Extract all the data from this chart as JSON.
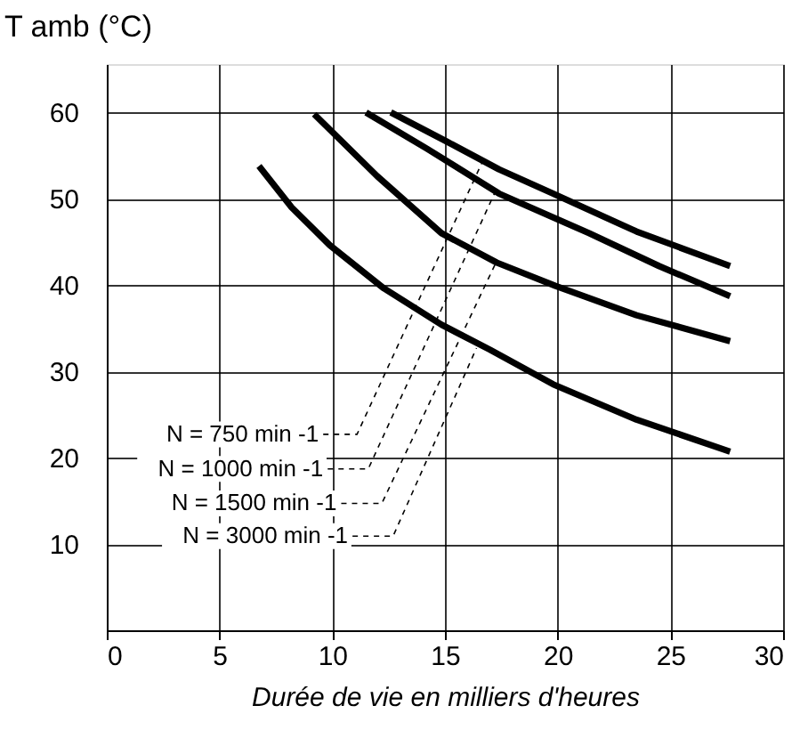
{
  "chart_data": {
    "type": "line",
    "xlabel": "Durée de vie en milliers d'heures",
    "ylabel": "T amb (°C)",
    "series": [
      {
        "color": "#000000",
        "x": [
          12.6,
          15.1,
          17.4,
          19.8,
          23.5,
          27.65
        ],
        "values": [
          60,
          56.6,
          53.4,
          50.6,
          46.2,
          42.2
        ]
      },
      {
        "color": "#000000",
        "x": [
          11.5,
          14.2,
          17.4,
          21.4,
          24.5,
          27.65
        ],
        "values": [
          60,
          55.8,
          50.6,
          46,
          42.2,
          38.7
        ]
      },
      {
        "color": "#000000",
        "x": [
          9.2,
          12,
          14.85,
          17.3,
          19.9,
          23.5,
          27.65
        ],
        "values": [
          59.8,
          52.6,
          46,
          42.6,
          39.9,
          36.5,
          33.5
        ]
      },
      {
        "color": "#000000",
        "x": [
          6.75,
          8.2,
          9.9,
          12.3,
          14.85,
          17,
          19.8,
          23.5,
          27.65
        ],
        "values": [
          53.8,
          49,
          44.6,
          39.6,
          35.4,
          32.5,
          28.5,
          24.4,
          20.7
        ]
      }
    ],
    "annotations": [
      {
        "text": "N = 750 min -1",
        "x": 16.7,
        "y": 54.5
      },
      {
        "text": "N = 1000 min -1",
        "x": 17.3,
        "y": 51.2
      },
      {
        "text": "N = 1500 min -1",
        "x": 17.3,
        "y": 42.8
      },
      {
        "text": "N = 3000 min -1",
        "x": 16.4,
        "y": 32.7
      }
    ],
    "xlim": [
      0,
      30
    ],
    "xticks": [
      0,
      5,
      10,
      15,
      20,
      25,
      30
    ],
    "ylim": [
      0,
      65.6
    ],
    "yticks": [
      10,
      20,
      30,
      40,
      50,
      60
    ],
    "grid": true,
    "line_style": "solid",
    "marker": "none"
  }
}
